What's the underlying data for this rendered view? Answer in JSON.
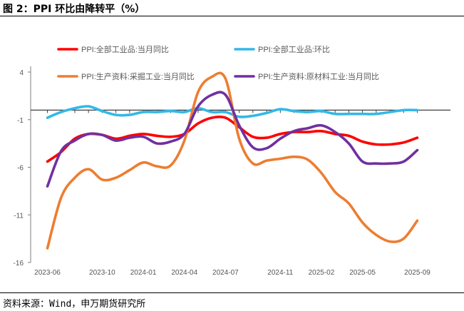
{
  "title": "图 2：PPI 环比由降转平（%）",
  "source": "资料来源：Wind，申万期货研究所",
  "chart_data": {
    "type": "line",
    "x": [
      "2023-06",
      "2023-07",
      "2023-08",
      "2023-09",
      "2023-10",
      "2023-11",
      "2023-12",
      "2024-01",
      "2024-02",
      "2024-03",
      "2024-04",
      "2024-05",
      "2024-06",
      "2024-07",
      "2024-08",
      "2024-09",
      "2024-10",
      "2024-11",
      "2024-12",
      "2025-01",
      "2025-02",
      "2025-03",
      "2025-04",
      "2025-05",
      "2025-06",
      "2025-07",
      "2025-08",
      "2025-09"
    ],
    "x_tick_labels": [
      "2023-06",
      "2023-10",
      "2024-01",
      "2024-04",
      "2024-07",
      "2024-11",
      "2025-02",
      "2025-05",
      "2025-09"
    ],
    "y_ticks": [
      4,
      -1,
      -6,
      -11,
      -16
    ],
    "ylim": [
      -16,
      4
    ],
    "grid": false,
    "legend_position": "top",
    "series": [
      {
        "name": "PPI:全部工业品:当月同比",
        "color": "#ff0000",
        "values": [
          -5.4,
          -4.4,
          -3.0,
          -2.5,
          -2.6,
          -3.0,
          -2.7,
          -2.5,
          -2.7,
          -2.8,
          -2.5,
          -1.4,
          -0.8,
          -0.8,
          -1.8,
          -2.8,
          -2.9,
          -2.5,
          -2.3,
          -2.3,
          -2.2,
          -2.5,
          -2.7,
          -3.3,
          -3.6,
          -3.6,
          -3.4,
          -2.9
        ]
      },
      {
        "name": "PPI:全部工业品:环比",
        "color": "#33b8e8",
        "values": [
          -0.8,
          -0.2,
          0.2,
          0.4,
          -0.1,
          -0.5,
          -0.5,
          -0.2,
          -0.2,
          -0.1,
          -0.2,
          0.2,
          -0.2,
          -0.2,
          -0.7,
          -0.6,
          -0.3,
          0.1,
          -0.1,
          -0.2,
          -0.1,
          -0.4,
          -0.4,
          -0.4,
          -0.4,
          -0.2,
          0.0,
          0.0
        ]
      },
      {
        "name": "PPI:生产资料:采掘工业:当月同比",
        "color": "#ed7d31",
        "values": [
          -14.5,
          -9.2,
          -7.1,
          -6.2,
          -7.3,
          -7.1,
          -6.3,
          -5.5,
          -5.9,
          -5.8,
          -3.2,
          1.9,
          3.5,
          3.3,
          -3.0,
          -5.6,
          -5.3,
          -5.1,
          -4.9,
          -5.2,
          -6.6,
          -8.6,
          -9.8,
          -11.8,
          -13.1,
          -13.8,
          -13.5,
          -11.6
        ]
      },
      {
        "name": "PPI:生产资料:原材料工业:当月同比",
        "color": "#7030a0",
        "values": [
          -8.0,
          -4.3,
          -3.2,
          -2.5,
          -2.6,
          -3.2,
          -2.9,
          -2.8,
          -3.5,
          -3.3,
          -2.5,
          0.4,
          1.6,
          1.6,
          -1.6,
          -3.9,
          -4.0,
          -3.0,
          -2.2,
          -1.9,
          -1.6,
          -2.3,
          -3.5,
          -5.4,
          -5.6,
          -5.6,
          -5.4,
          -4.2
        ]
      }
    ]
  }
}
